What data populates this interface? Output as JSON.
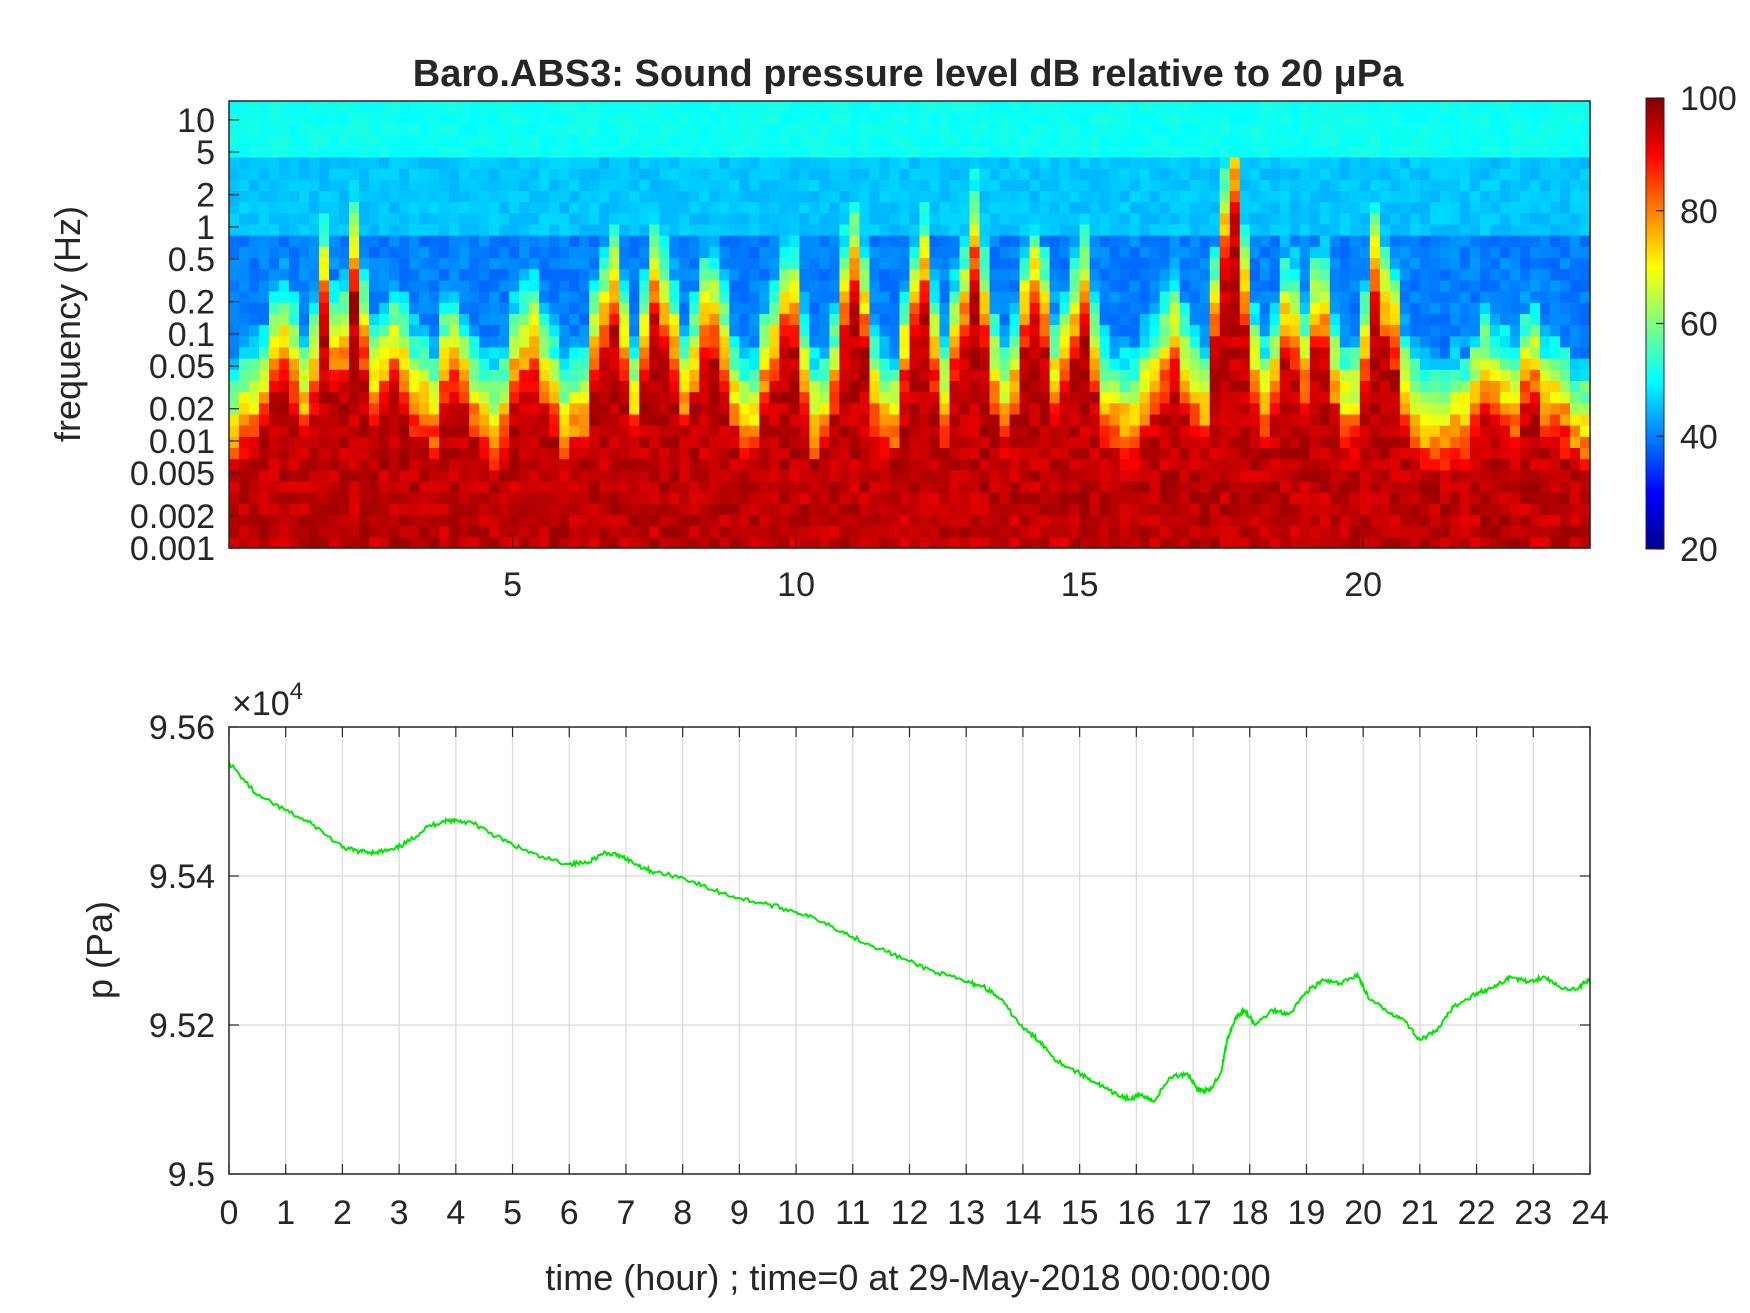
{
  "figure": {
    "title": "Baro.ABS3: Sound pressure level dB relative to 20 μPa",
    "colors": {
      "background": "#ffffff",
      "axis": "#262626",
      "grid": "#d9d9d9",
      "line": "#00e600"
    }
  },
  "chart_data": [
    {
      "type": "heatmap",
      "title": "Baro.ABS3: Sound pressure level dB relative to 20 μPa",
      "xlabel": "",
      "ylabel": "frequency (Hz)",
      "x_unit": "hour",
      "xlim": [
        0,
        24
      ],
      "x_ticks": [
        5,
        10,
        15,
        20
      ],
      "y_scale": "log",
      "ylim": [
        0.001,
        15
      ],
      "y_ticks": [
        0.001,
        0.002,
        0.005,
        0.01,
        0.02,
        0.05,
        0.1,
        0.2,
        0.5,
        1,
        2,
        5,
        10
      ],
      "y_tick_labels": [
        "0.001",
        "0.002",
        "0.005",
        "0.01",
        "0.02",
        "0.05",
        "0.1",
        "0.2",
        "0.5",
        "1",
        "2",
        "5",
        "10"
      ],
      "colormap": "jet",
      "colorbar": {
        "range": [
          20,
          100
        ],
        "ticks": [
          20,
          40,
          60,
          80,
          100
        ],
        "placement": "right"
      },
      "bursts": [
        {
          "t": 1.0,
          "extent": 0.3
        },
        {
          "t": 1.7,
          "extent": 0.45
        },
        {
          "t": 2.2,
          "extent": 0.5
        },
        {
          "t": 3.0,
          "extent": 0.3
        },
        {
          "t": 4.0,
          "extent": 0.25
        },
        {
          "t": 5.3,
          "extent": 0.35
        },
        {
          "t": 6.7,
          "extent": 0.5
        },
        {
          "t": 7.6,
          "extent": 0.55
        },
        {
          "t": 8.5,
          "extent": 0.5
        },
        {
          "t": 9.8,
          "extent": 0.5
        },
        {
          "t": 11.0,
          "extent": 0.55
        },
        {
          "t": 12.2,
          "extent": 0.55
        },
        {
          "t": 13.1,
          "extent": 0.6
        },
        {
          "t": 14.2,
          "extent": 0.55
        },
        {
          "t": 15.0,
          "extent": 0.5
        },
        {
          "t": 16.6,
          "extent": 0.35
        },
        {
          "t": 17.7,
          "extent": 1.0
        },
        {
          "t": 18.7,
          "extent": 0.45
        },
        {
          "t": 19.2,
          "extent": 0.4
        },
        {
          "t": 20.3,
          "extent": 0.55
        },
        {
          "t": 22.2,
          "extent": 0.2
        },
        {
          "t": 23.0,
          "extent": 0.2
        }
      ]
    },
    {
      "type": "line",
      "xlabel": "time (hour) ; time=0 at 29-May-2018 00:00:00",
      "ylabel": "p (Pa)",
      "y_multiplier": "×10",
      "y_multiplier_exponent": "4",
      "xlim": [
        0,
        24
      ],
      "ylim": [
        9.5,
        9.56
      ],
      "x_ticks": [
        0,
        1,
        2,
        3,
        4,
        5,
        6,
        7,
        8,
        9,
        10,
        11,
        12,
        13,
        14,
        15,
        16,
        17,
        18,
        19,
        20,
        21,
        22,
        23,
        24
      ],
      "y_ticks": [
        9.5,
        9.52,
        9.54,
        9.56
      ],
      "y_tick_labels": [
        "9.5",
        "9.52",
        "9.54",
        "9.56"
      ],
      "grid": true,
      "series": [
        {
          "color": "#00e600",
          "x": [
            0,
            0.5,
            1,
            1.5,
            2,
            2.3,
            2.6,
            2.9,
            3.2,
            3.5,
            3.8,
            4.0,
            4.3,
            4.6,
            5.0,
            5.5,
            6.0,
            6.3,
            6.6,
            6.9,
            7.2,
            7.5,
            8.0,
            8.5,
            9.0,
            9.5,
            10.0,
            10.5,
            11.0,
            11.5,
            12.0,
            12.5,
            13.0,
            13.3,
            13.6,
            14.0,
            14.3,
            14.6,
            15.0,
            15.3,
            15.6,
            15.9,
            16.1,
            16.3,
            16.6,
            16.9,
            17.1,
            17.3,
            17.5,
            17.6,
            17.75,
            17.9,
            18.1,
            18.4,
            18.7,
            19.0,
            19.3,
            19.6,
            19.9,
            20.1,
            20.4,
            20.7,
            21.0,
            21.3,
            21.6,
            22.0,
            22.3,
            22.6,
            22.9,
            23.2,
            23.5,
            23.8,
            24.0
          ],
          "y": [
            9.5552,
            9.5508,
            9.5488,
            9.5468,
            9.5438,
            9.5433,
            9.5432,
            9.5435,
            9.5448,
            9.5466,
            9.5474,
            9.5475,
            9.5471,
            9.5458,
            9.5442,
            9.5425,
            9.5416,
            9.5418,
            9.543,
            9.5428,
            9.5415,
            9.5405,
            9.5398,
            9.5382,
            9.537,
            9.5362,
            9.5352,
            9.5338,
            9.5318,
            9.5302,
            9.5285,
            9.527,
            9.5258,
            9.5252,
            9.5235,
            9.5196,
            9.5178,
            9.5152,
            9.5135,
            9.5122,
            9.5108,
            9.51,
            9.5107,
            9.5097,
            9.513,
            9.5135,
            9.5112,
            9.5112,
            9.5138,
            9.518,
            9.521,
            9.522,
            9.52,
            9.522,
            9.5215,
            9.5245,
            9.526,
            9.5255,
            9.5268,
            9.5235,
            9.522,
            9.5208,
            9.518,
            9.5192,
            9.5225,
            9.5243,
            9.525,
            9.5265,
            9.5258,
            9.5265,
            9.5248,
            9.525,
            9.5262
          ]
        }
      ]
    }
  ]
}
